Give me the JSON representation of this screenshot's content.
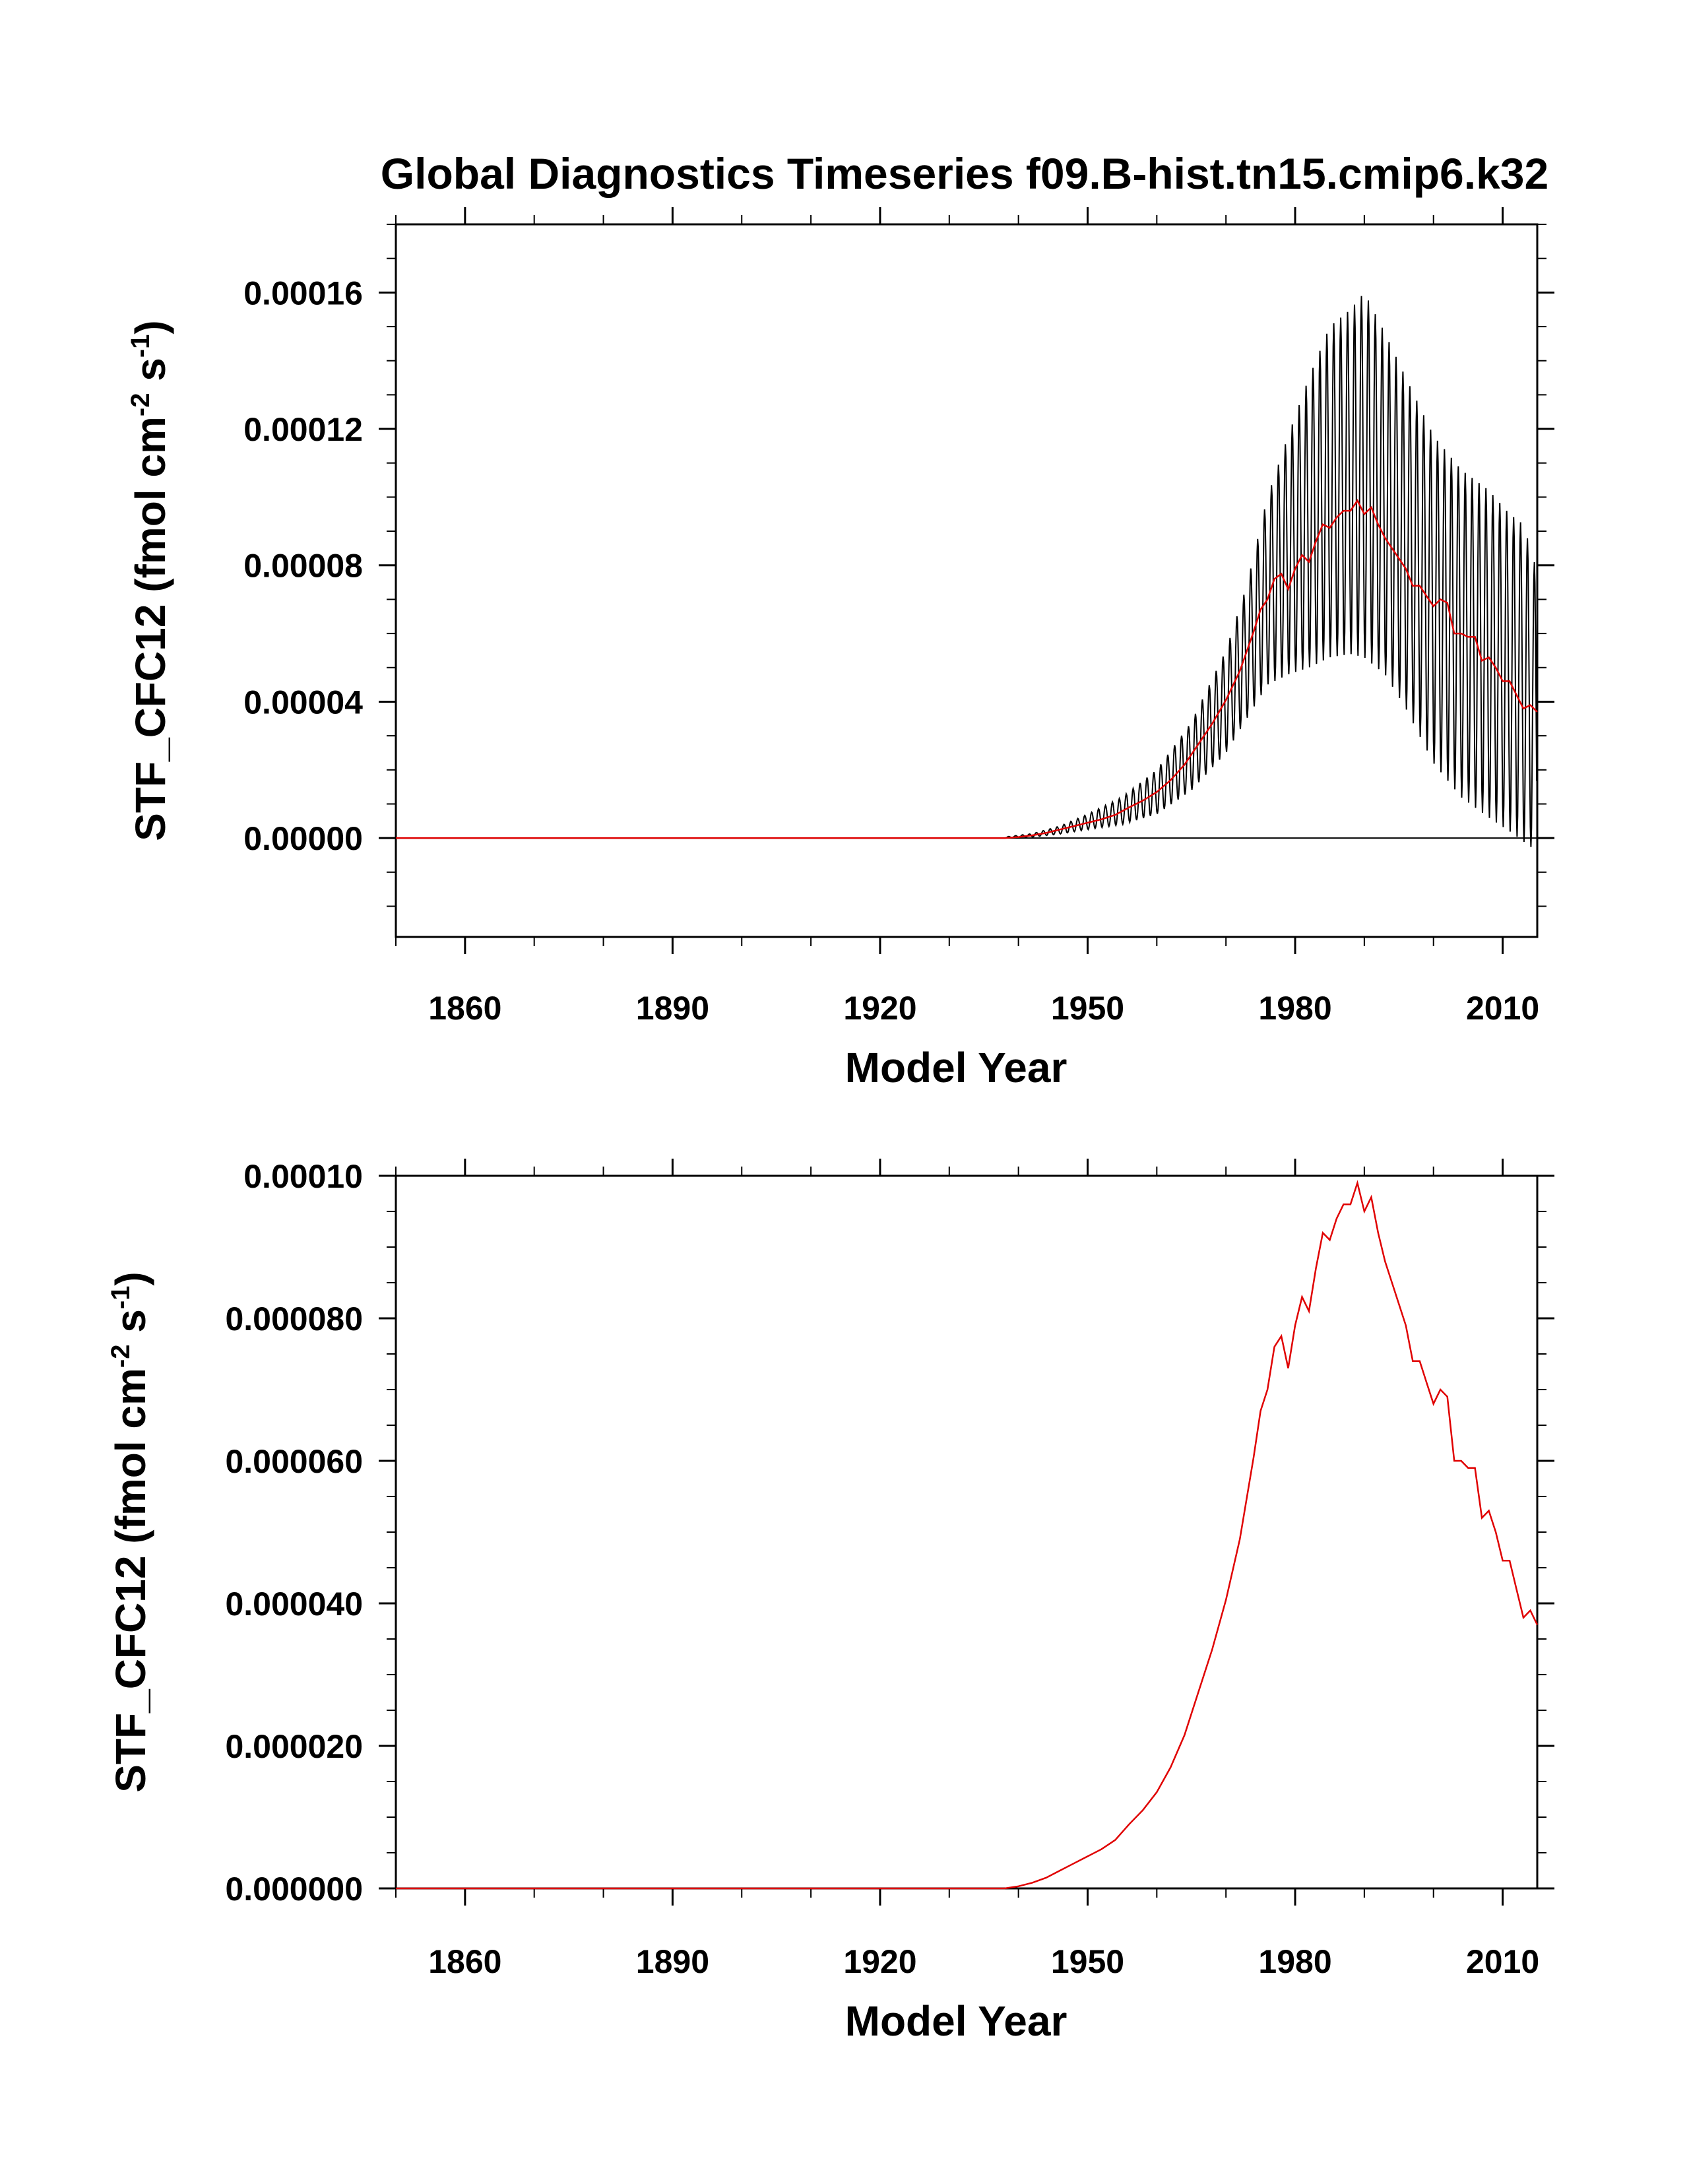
{
  "title": "Global Diagnostics Timeseries f09.B-hist.tn15.cmip6.k32",
  "colors": {
    "monthly": "#000000",
    "annual": "#e00000",
    "axes": "#000000"
  },
  "chart_data": [
    {
      "type": "line",
      "panel": "top",
      "xlabel": "Model Year",
      "ylabel_main": "STF_CFC12 (fmol cm",
      "ylabel_exp1": "-2",
      "ylabel_mid": " s",
      "ylabel_exp2": "-1",
      "ylabel_end": ")",
      "xlim": [
        1850,
        2015
      ],
      "ylim": [
        -2.9e-05,
        0.00018
      ],
      "xticks": [
        1860,
        1890,
        1920,
        1950,
        1980,
        2010
      ],
      "xtick_labels": [
        "1860",
        "1890",
        "1920",
        "1950",
        "1980",
        "2010"
      ],
      "yticks": [
        0.0,
        4e-05,
        8e-05,
        0.00012,
        0.00016
      ],
      "ytick_labels": [
        "0.00000",
        "0.00004",
        "0.00008",
        "0.00012",
        "0.00016"
      ],
      "zero_line": true,
      "series": [
        {
          "name": "monthly",
          "kind": "seasonal",
          "years": [
            1938,
            1942,
            1946,
            1950,
            1955,
            1960,
            1965,
            1970,
            1973,
            1976,
            1979,
            1982,
            1985,
            1988,
            1990,
            1993,
            1996,
            2000,
            2004,
            2008,
            2011,
            2013,
            2015
          ],
          "max": [
            3e-07,
            1.3e-06,
            3.5e-06,
            7e-06,
            1.2e-05,
            2e-05,
            3.4e-05,
            5.5e-05,
            7.4e-05,
            0.0001,
            0.000118,
            0.000135,
            0.00015,
            0.000155,
            0.00016,
            0.000148,
            0.000135,
            0.000118,
            0.000108,
            0.000102,
            9.5e-05,
            9.2e-05,
            7.8e-05
          ],
          "min": [
            0.0,
            3e-07,
            1.2e-06,
            2.5e-06,
            4e-06,
            7e-06,
            1.4e-05,
            2.5e-05,
            3.5e-05,
            4.5e-05,
            4.8e-05,
            5e-05,
            5.3e-05,
            5.4e-05,
            5.3e-05,
            4.8e-05,
            3.8e-05,
            2.2e-05,
            1.2e-05,
            6e-06,
            2e-06,
            -1e-06,
            -4e-06
          ]
        },
        {
          "name": "annual_mean",
          "years": [
            1938,
            1940,
            1942,
            1944,
            1946,
            1948,
            1950,
            1952,
            1954,
            1956,
            1958,
            1960,
            1962,
            1964,
            1966,
            1968,
            1970,
            1972,
            1974,
            1975,
            1976,
            1977,
            1978,
            1979,
            1980,
            1981,
            1982,
            1983,
            1984,
            1985,
            1986,
            1987,
            1988,
            1989,
            1990,
            1991,
            1992,
            1993,
            1994,
            1995,
            1996,
            1997,
            1998,
            1999,
            2000,
            2001,
            2002,
            2003,
            2004,
            2005,
            2006,
            2007,
            2008,
            2009,
            2010,
            2011,
            2012,
            2013,
            2014,
            2015
          ],
          "values": [
            0.0,
            3e-07,
            8e-07,
            1.5e-06,
            2.5e-06,
            3.5e-06,
            4.5e-06,
            5.5e-06,
            6.8e-06,
            9e-06,
            1.1e-05,
            1.35e-05,
            1.7e-05,
            2.15e-05,
            2.75e-05,
            3.35e-05,
            4.05e-05,
            4.9e-05,
            6.05e-05,
            6.7e-05,
            7e-05,
            7.6e-05,
            7.75e-05,
            7.3e-05,
            7.9e-05,
            8.3e-05,
            8.1e-05,
            8.7e-05,
            9.2e-05,
            9.1e-05,
            9.4e-05,
            9.6e-05,
            9.6e-05,
            9.9e-05,
            9.5e-05,
            9.7e-05,
            9.2e-05,
            8.8e-05,
            8.5e-05,
            8.2e-05,
            7.9e-05,
            7.4e-05,
            7.4e-05,
            7.1e-05,
            6.8e-05,
            7e-05,
            6.9e-05,
            6e-05,
            6e-05,
            5.9e-05,
            5.9e-05,
            5.2e-05,
            5.3e-05,
            5e-05,
            4.6e-05,
            4.6e-05,
            4.2e-05,
            3.8e-05,
            3.9e-05,
            3.7e-05
          ]
        }
      ]
    },
    {
      "type": "line",
      "panel": "bottom",
      "xlabel": "Model Year",
      "ylabel_main": "STF_CFC12 (fmol cm",
      "ylabel_exp1": "-2",
      "ylabel_mid": " s",
      "ylabel_exp2": "-1",
      "ylabel_end": ")",
      "xlim": [
        1850,
        2015
      ],
      "ylim": [
        0.0,
        0.0001
      ],
      "xticks": [
        1860,
        1890,
        1920,
        1950,
        1980,
        2010
      ],
      "xtick_labels": [
        "1860",
        "1890",
        "1920",
        "1950",
        "1980",
        "2010"
      ],
      "yticks": [
        0.0,
        2e-05,
        4e-05,
        6e-05,
        8e-05,
        0.0001
      ],
      "ytick_labels": [
        "0.000000",
        "0.000020",
        "0.000040",
        "0.000060",
        "0.000080",
        "0.00010"
      ],
      "zero_line": false,
      "series": [
        {
          "name": "annual_mean",
          "years": [
            1938,
            1940,
            1942,
            1944,
            1946,
            1948,
            1950,
            1952,
            1954,
            1956,
            1958,
            1960,
            1962,
            1964,
            1966,
            1968,
            1970,
            1972,
            1974,
            1975,
            1976,
            1977,
            1978,
            1979,
            1980,
            1981,
            1982,
            1983,
            1984,
            1985,
            1986,
            1987,
            1988,
            1989,
            1990,
            1991,
            1992,
            1993,
            1994,
            1995,
            1996,
            1997,
            1998,
            1999,
            2000,
            2001,
            2002,
            2003,
            2004,
            2005,
            2006,
            2007,
            2008,
            2009,
            2010,
            2011,
            2012,
            2013,
            2014,
            2015
          ],
          "values": [
            0.0,
            3e-07,
            8e-07,
            1.5e-06,
            2.5e-06,
            3.5e-06,
            4.5e-06,
            5.5e-06,
            6.8e-06,
            9e-06,
            1.1e-05,
            1.35e-05,
            1.7e-05,
            2.15e-05,
            2.75e-05,
            3.35e-05,
            4.05e-05,
            4.9e-05,
            6.05e-05,
            6.7e-05,
            7e-05,
            7.6e-05,
            7.75e-05,
            7.3e-05,
            7.9e-05,
            8.3e-05,
            8.1e-05,
            8.7e-05,
            9.2e-05,
            9.1e-05,
            9.4e-05,
            9.6e-05,
            9.6e-05,
            9.9e-05,
            9.5e-05,
            9.7e-05,
            9.2e-05,
            8.8e-05,
            8.5e-05,
            8.2e-05,
            7.9e-05,
            7.4e-05,
            7.4e-05,
            7.1e-05,
            6.8e-05,
            7e-05,
            6.9e-05,
            6e-05,
            6e-05,
            5.9e-05,
            5.9e-05,
            5.2e-05,
            5.3e-05,
            5e-05,
            4.6e-05,
            4.6e-05,
            4.2e-05,
            3.8e-05,
            3.9e-05,
            3.7e-05
          ]
        }
      ]
    }
  ]
}
